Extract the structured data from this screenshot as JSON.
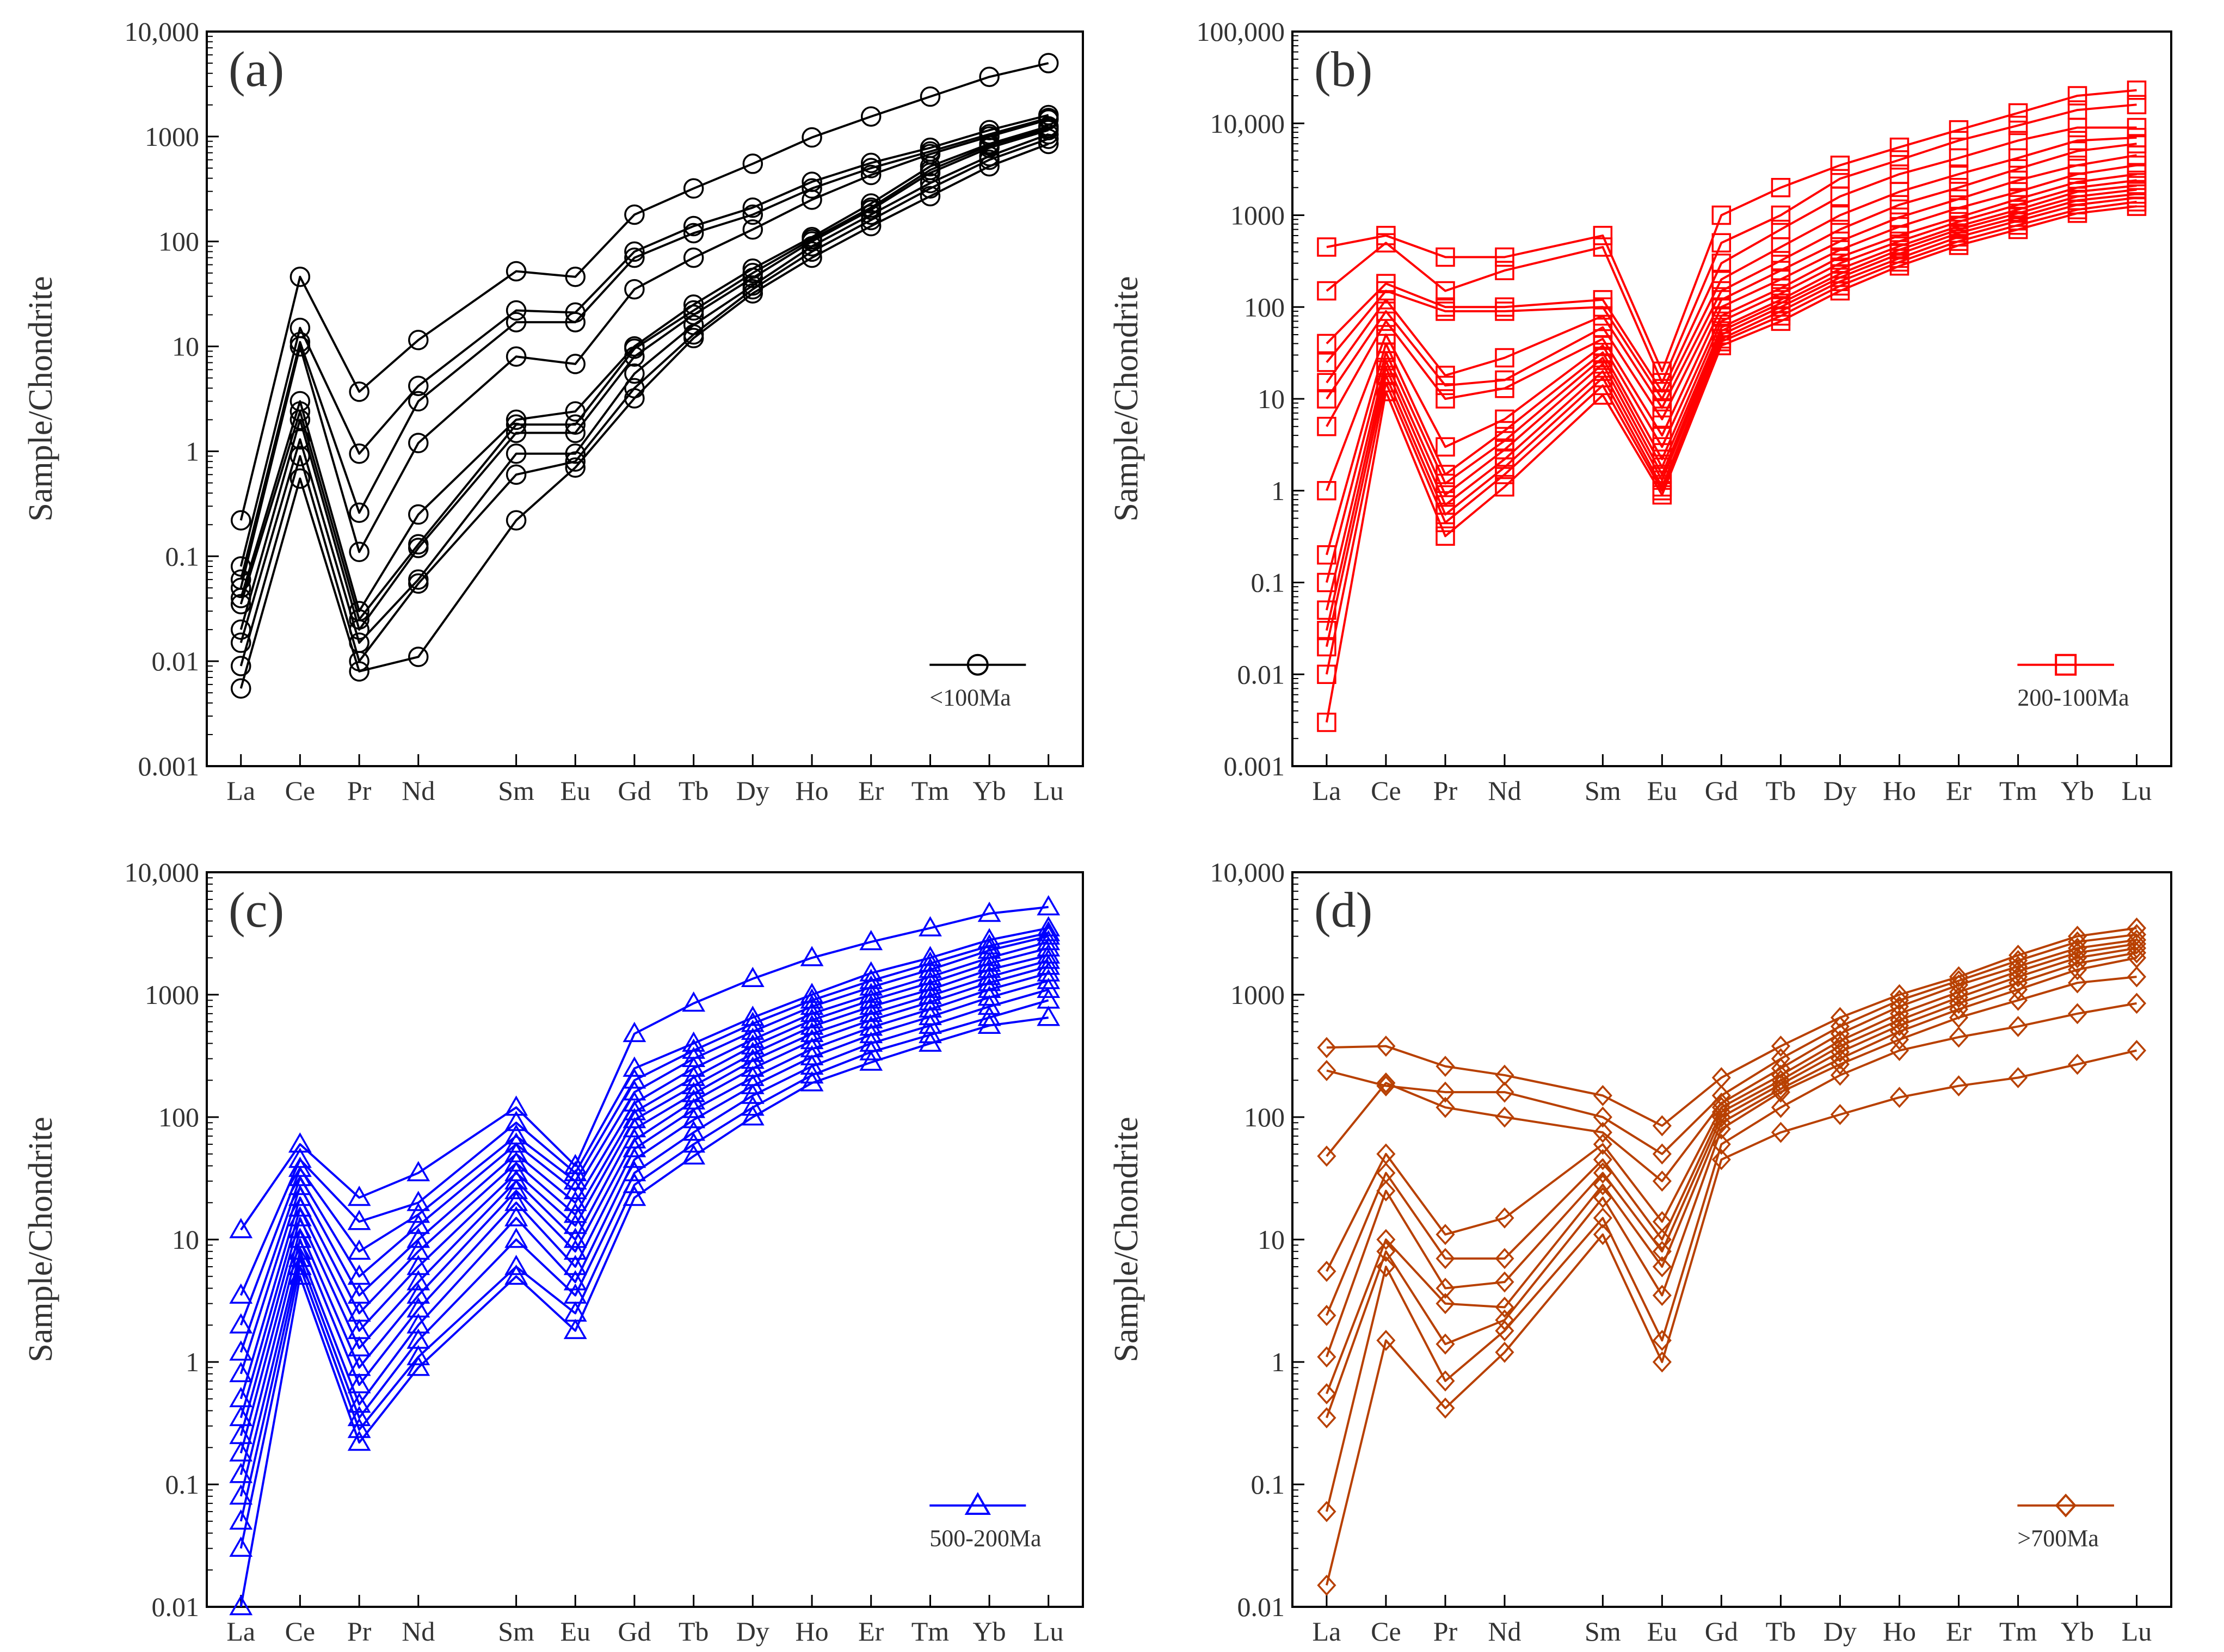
{
  "figure": {
    "elements": [
      "La",
      "Ce",
      "Pr",
      "Nd",
      "Sm",
      "Eu",
      "Gd",
      "Tb",
      "Dy",
      "Ho",
      "Er",
      "Tm",
      "Yb",
      "Lu"
    ],
    "ylabel": "Sample/Chondrite"
  },
  "chart_data": [
    {
      "type": "line",
      "panel": "(a)",
      "title": "(a)",
      "ylabel": "Sample/Chondrite",
      "yscale": "log",
      "ylim": [
        0.001,
        10000
      ],
      "yticks": [
        "0.001",
        "0.01",
        "0.1",
        "1",
        "10",
        "100",
        "1000",
        "10,000"
      ],
      "marker": "circle",
      "color": "#000000",
      "legend": "<100Ma",
      "legend_position": "bottom-right",
      "series": [
        {
          "name": "s1",
          "values": [
            0.22,
            46,
            3.7,
            11.5,
            52,
            46,
            180,
            320,
            550,
            980,
            1550,
            2400,
            3700,
            5000
          ]
        },
        {
          "name": "s2",
          "values": [
            0.08,
            15,
            0.95,
            4.2,
            22,
            21,
            80,
            140,
            210,
            370,
            560,
            780,
            1150,
            1600
          ]
        },
        {
          "name": "s3",
          "values": [
            0.06,
            11,
            0.26,
            3.0,
            17,
            17,
            70,
            120,
            180,
            320,
            500,
            720,
            1050,
            1500
          ]
        },
        {
          "name": "s4",
          "values": [
            0.05,
            10,
            0.11,
            1.2,
            8,
            6.8,
            35,
            70,
            130,
            250,
            430,
            680,
            1000,
            1450
          ]
        },
        {
          "name": "s5",
          "values": [
            0.04,
            3,
            0.03,
            0.25,
            2,
            2.4,
            10,
            25,
            55,
            110,
            230,
            520,
            850,
            1250
          ]
        },
        {
          "name": "s6",
          "values": [
            0.035,
            2.4,
            0.025,
            0.13,
            1.8,
            1.8,
            9.5,
            22,
            50,
            105,
            210,
            480,
            820,
            1200
          ]
        },
        {
          "name": "s7",
          "values": [
            0.02,
            2,
            0.02,
            0.12,
            1.5,
            1.5,
            8,
            20,
            45,
            100,
            200,
            450,
            780,
            1150
          ]
        },
        {
          "name": "s8",
          "values": [
            0.015,
            1.3,
            0.015,
            0.06,
            0.95,
            0.95,
            5.5,
            16,
            38,
            90,
            180,
            360,
            650,
            1050
          ]
        },
        {
          "name": "s9",
          "values": [
            0.009,
            0.9,
            0.01,
            0.055,
            0.6,
            0.8,
            4,
            13,
            35,
            80,
            160,
            320,
            600,
            950
          ]
        },
        {
          "name": "s10",
          "values": [
            0.0055,
            0.55,
            0.008,
            0.011,
            0.22,
            0.7,
            3.2,
            12,
            32,
            70,
            140,
            270,
            520,
            850
          ]
        }
      ]
    },
    {
      "type": "line",
      "panel": "(b)",
      "title": "(b)",
      "ylabel": "Sample/Chondrite",
      "yscale": "log",
      "ylim": [
        0.001,
        100000
      ],
      "yticks": [
        "0.001",
        "0.01",
        "0.1",
        "1",
        "10",
        "100",
        "1000",
        "10,000",
        "100,000"
      ],
      "marker": "square",
      "color": "#ff0000",
      "legend": "200-100Ma",
      "legend_position": "bottom-right",
      "series": [
        {
          "name": "s1",
          "values": [
            450,
            600,
            350,
            350,
            600,
            20,
            1000,
            2000,
            3500,
            5500,
            8500,
            13000,
            20000,
            23000
          ]
        },
        {
          "name": "s2",
          "values": [
            150,
            500,
            150,
            250,
            450,
            15,
            500,
            1000,
            2500,
            4000,
            6500,
            9500,
            14000,
            16000
          ]
        },
        {
          "name": "s3",
          "values": [
            40,
            180,
            100,
            100,
            120,
            12,
            300,
            700,
            1600,
            2800,
            4200,
            6500,
            9000,
            9000
          ]
        },
        {
          "name": "s4",
          "values": [
            25,
            150,
            90,
            90,
            100,
            10,
            200,
            450,
            1000,
            1800,
            2800,
            4200,
            6500,
            7000
          ]
        },
        {
          "name": "s5",
          "values": [
            15,
            120,
            18,
            28,
            80,
            8,
            150,
            320,
            700,
            1300,
            2000,
            3200,
            5000,
            6000
          ]
        },
        {
          "name": "s6",
          "values": [
            10,
            90,
            14,
            16,
            60,
            6,
            120,
            250,
            520,
            950,
            1500,
            2400,
            3500,
            4500
          ]
        },
        {
          "name": "s7",
          "values": [
            5,
            70,
            10,
            13,
            45,
            4,
            100,
            200,
            420,
            750,
            1200,
            1800,
            2800,
            3500
          ]
        },
        {
          "name": "s8",
          "values": [
            1,
            50,
            3,
            6,
            38,
            3,
            80,
            160,
            350,
            600,
            950,
            1500,
            2300,
            2800
          ]
        },
        {
          "name": "s9",
          "values": [
            0.2,
            40,
            1.5,
            4.5,
            32,
            2.2,
            70,
            140,
            300,
            520,
            850,
            1300,
            2000,
            2400
          ]
        },
        {
          "name": "s10",
          "values": [
            0.1,
            32,
            1.2,
            3.5,
            28,
            1.8,
            60,
            120,
            260,
            460,
            760,
            1150,
            1800,
            2100
          ]
        },
        {
          "name": "s11",
          "values": [
            0.05,
            26,
            0.9,
            2.8,
            24,
            1.5,
            55,
            110,
            230,
            420,
            700,
            1050,
            1600,
            1900
          ]
        },
        {
          "name": "s12",
          "values": [
            0.03,
            22,
            0.7,
            2.2,
            20,
            1.3,
            50,
            100,
            210,
            380,
            640,
            950,
            1450,
            1700
          ]
        },
        {
          "name": "s13",
          "values": [
            0.02,
            18,
            0.55,
            1.8,
            17,
            1.1,
            45,
            90,
            190,
            340,
            580,
            870,
            1300,
            1550
          ]
        },
        {
          "name": "s14",
          "values": [
            0.01,
            15,
            0.45,
            1.5,
            14,
            1.0,
            42,
            80,
            170,
            310,
            520,
            780,
            1150,
            1400
          ]
        },
        {
          "name": "s15",
          "values": [
            0.003,
            12,
            0.32,
            1.1,
            11,
            0.9,
            38,
            70,
            150,
            280,
            470,
            700,
            1050,
            1250
          ]
        }
      ]
    },
    {
      "type": "line",
      "panel": "(c)",
      "title": "(c)",
      "ylabel": "Sample/Chondrite",
      "yscale": "log",
      "ylim": [
        0.01,
        10000
      ],
      "yticks": [
        "0.01",
        "0.1",
        "1",
        "10",
        "100",
        "1000",
        "10,000"
      ],
      "marker": "triangle",
      "color": "#0000ff",
      "legend": "500-200Ma",
      "legend_position": "bottom-right",
      "series": [
        {
          "name": "s1",
          "values": [
            12,
            60,
            22,
            35,
            120,
            40,
            480,
            850,
            1350,
            2000,
            2700,
            3500,
            4600,
            5200
          ]
        },
        {
          "name": "s2",
          "values": [
            3.5,
            45,
            14,
            20,
            90,
            35,
            250,
            400,
            650,
            1000,
            1500,
            2000,
            2800,
            3500
          ]
        },
        {
          "name": "s3",
          "values": [
            2,
            38,
            8,
            16,
            70,
            30,
            200,
            350,
            580,
            900,
            1300,
            1800,
            2500,
            3200
          ]
        },
        {
          "name": "s4",
          "values": [
            1.2,
            32,
            5,
            13,
            60,
            25,
            160,
            300,
            500,
            800,
            1150,
            1600,
            2300,
            3000
          ]
        },
        {
          "name": "s5",
          "values": [
            0.8,
            27,
            3.5,
            10,
            50,
            20,
            130,
            250,
            430,
            700,
            1000,
            1400,
            2000,
            2700
          ]
        },
        {
          "name": "s6",
          "values": [
            0.5,
            22,
            2.5,
            8,
            42,
            16,
            110,
            210,
            380,
            620,
            900,
            1250,
            1800,
            2400
          ]
        },
        {
          "name": "s7",
          "values": [
            0.35,
            18,
            1.8,
            6,
            35,
            13,
            95,
            180,
            330,
            550,
            800,
            1100,
            1600,
            2100
          ]
        },
        {
          "name": "s8",
          "values": [
            0.25,
            15,
            1.3,
            4.5,
            30,
            10,
            80,
            155,
            290,
            480,
            700,
            980,
            1400,
            1900
          ]
        },
        {
          "name": "s9",
          "values": [
            0.18,
            12,
            0.9,
            3.5,
            25,
            8,
            65,
            135,
            250,
            420,
            620,
            870,
            1250,
            1700
          ]
        },
        {
          "name": "s10",
          "values": [
            0.12,
            10,
            0.65,
            2.7,
            20,
            6,
            55,
            115,
            210,
            360,
            540,
            760,
            1100,
            1500
          ]
        },
        {
          "name": "s11",
          "values": [
            0.08,
            8,
            0.45,
            2,
            15,
            4.5,
            45,
            95,
            180,
            310,
            470,
            660,
            950,
            1300
          ]
        },
        {
          "name": "s12",
          "values": [
            0.05,
            7,
            0.35,
            1.5,
            10,
            3.5,
            35,
            75,
            150,
            260,
            400,
            560,
            800,
            1100
          ]
        },
        {
          "name": "s13",
          "values": [
            0.03,
            6,
            0.28,
            1.1,
            6,
            2.5,
            28,
            60,
            120,
            220,
            340,
            470,
            650,
            900
          ]
        },
        {
          "name": "s14",
          "values": [
            0.01,
            5,
            0.22,
            0.9,
            5,
            1.8,
            22,
            48,
            100,
            190,
            280,
            400,
            560,
            650
          ]
        }
      ]
    },
    {
      "type": "line",
      "panel": "(d)",
      "title": "(d)",
      "ylabel": "Sample/Chondrite",
      "yscale": "log",
      "ylim": [
        0.01,
        10000
      ],
      "yticks": [
        "0.01",
        "0.1",
        "1",
        "10",
        "100",
        "1000",
        "10,000"
      ],
      "marker": "diamond",
      "color": "#b84000",
      "legend": ">700Ma",
      "legend_position": "bottom-right",
      "series": [
        {
          "name": "s1",
          "values": [
            370,
            380,
            260,
            220,
            150,
            85,
            210,
            380,
            650,
            1000,
            1400,
            2100,
            3000,
            3500
          ]
        },
        {
          "name": "s2",
          "values": [
            240,
            180,
            160,
            160,
            100,
            50,
            150,
            300,
            550,
            900,
            1300,
            1900,
            2700,
            3100
          ]
        },
        {
          "name": "s3",
          "values": [
            48,
            190,
            120,
            100,
            75,
            30,
            130,
            250,
            480,
            800,
            1200,
            1700,
            2400,
            2800
          ]
        },
        {
          "name": "s4",
          "values": [
            5.5,
            50,
            11,
            15,
            60,
            14,
            120,
            220,
            420,
            700,
            1050,
            1550,
            2200,
            2600
          ]
        },
        {
          "name": "s5",
          "values": [
            2.4,
            35,
            7,
            7,
            45,
            10,
            110,
            200,
            380,
            620,
            950,
            1400,
            2000,
            2400
          ]
        },
        {
          "name": "s6",
          "values": [
            1.1,
            25,
            4,
            4.5,
            35,
            8,
            100,
            185,
            340,
            560,
            850,
            1250,
            1800,
            2200
          ]
        },
        {
          "name": "s7",
          "values": [
            0.55,
            10,
            3,
            2.8,
            28,
            6,
            90,
            170,
            300,
            500,
            760,
            1100,
            1600,
            2000
          ]
        },
        {
          "name": "s8",
          "values": [
            0.35,
            8,
            1.4,
            2.2,
            22,
            3.5,
            80,
            160,
            270,
            430,
            650,
            900,
            1250,
            1400
          ]
        },
        {
          "name": "s9",
          "values": [
            0.06,
            6,
            0.7,
            1.8,
            15,
            1.5,
            60,
            120,
            220,
            350,
            450,
            550,
            700,
            850
          ]
        },
        {
          "name": "s10",
          "values": [
            0.015,
            1.5,
            0.42,
            1.2,
            11,
            1.0,
            45,
            75,
            105,
            145,
            180,
            210,
            270,
            350
          ]
        }
      ]
    }
  ]
}
